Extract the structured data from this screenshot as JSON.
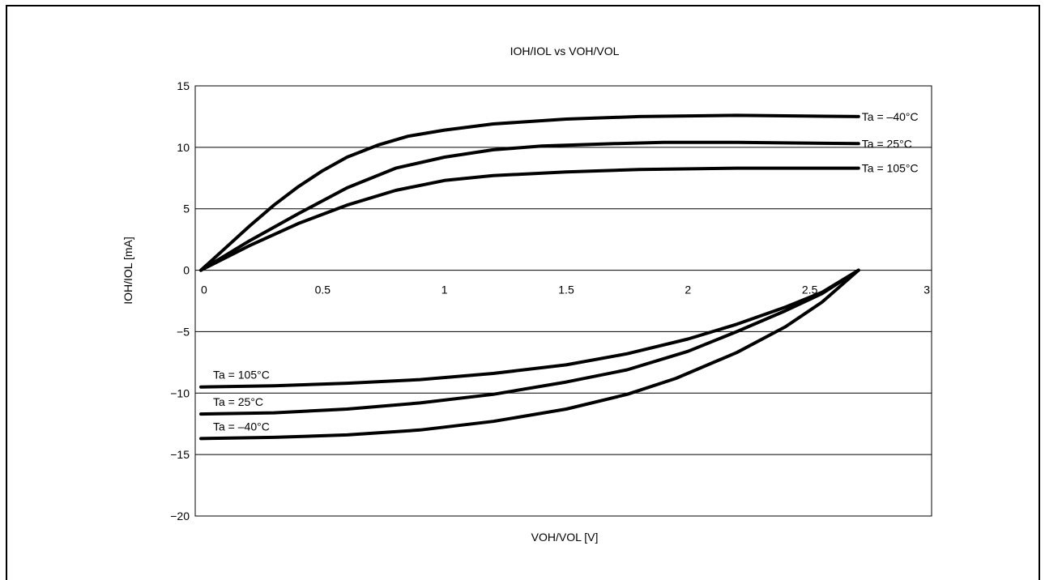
{
  "chart_data": {
    "type": "line",
    "title": "IOH/IOL vs VOH/VOL",
    "xlabel": "VOH/VOL [V]",
    "ylabel": "IOH/IOL [mA]",
    "xlim": [
      0,
      3
    ],
    "ylim": [
      -20,
      15
    ],
    "x_ticks": [
      0,
      0.5,
      1,
      1.5,
      2,
      2.5,
      3
    ],
    "x_tick_labels": [
      "0",
      "0.5",
      "1",
      "1.5",
      "2",
      "2.5",
      "3"
    ],
    "y_ticks": [
      15,
      10,
      5,
      0,
      -5,
      -10,
      -15,
      -20
    ],
    "y_tick_labels": [
      "15",
      "10",
      "5",
      "0",
      "−5",
      "−10",
      "−15",
      "−20"
    ],
    "grid": "horizontal",
    "color": "#000000",
    "series": [
      {
        "name": "Ta = –40°C",
        "label_side": "right",
        "x": [
          0,
          0.1,
          0.2,
          0.3,
          0.4,
          0.5,
          0.6,
          0.73,
          0.85,
          1.0,
          1.2,
          1.5,
          1.8,
          2.2,
          2.7
        ],
        "y": [
          0,
          1.8,
          3.6,
          5.3,
          6.8,
          8.1,
          9.2,
          10.2,
          10.9,
          11.4,
          11.9,
          12.3,
          12.5,
          12.6,
          12.5
        ]
      },
      {
        "name": "Ta = 25°C",
        "label_side": "right",
        "x": [
          0,
          0.2,
          0.4,
          0.6,
          0.8,
          1.0,
          1.2,
          1.4,
          1.7,
          1.9,
          2.2,
          2.7
        ],
        "y": [
          0,
          2.4,
          4.6,
          6.7,
          8.3,
          9.2,
          9.8,
          10.1,
          10.3,
          10.4,
          10.4,
          10.3
        ]
      },
      {
        "name": "Ta = 105°C",
        "label_side": "right",
        "x": [
          0,
          0.2,
          0.4,
          0.6,
          0.8,
          1.0,
          1.2,
          1.5,
          1.8,
          2.2,
          2.7
        ],
        "y": [
          0,
          2.0,
          3.8,
          5.3,
          6.5,
          7.3,
          7.7,
          8.0,
          8.2,
          8.3,
          8.3
        ]
      },
      {
        "name": "Ta = 105°C",
        "label_side": "left",
        "x": [
          0,
          0.3,
          0.6,
          0.9,
          1.2,
          1.5,
          1.75,
          2.0,
          2.2,
          2.4,
          2.55,
          2.7
        ],
        "y": [
          -9.5,
          -9.4,
          -9.2,
          -8.9,
          -8.4,
          -7.7,
          -6.8,
          -5.6,
          -4.4,
          -3.0,
          -1.8,
          0
        ]
      },
      {
        "name": "Ta = 25°C",
        "label_side": "left",
        "x": [
          0,
          0.3,
          0.6,
          0.9,
          1.2,
          1.5,
          1.75,
          2.0,
          2.2,
          2.4,
          2.55,
          2.7
        ],
        "y": [
          -11.7,
          -11.6,
          -11.3,
          -10.8,
          -10.1,
          -9.1,
          -8.1,
          -6.6,
          -5.0,
          -3.3,
          -1.9,
          0
        ]
      },
      {
        "name": "Ta = –40°C",
        "label_side": "left",
        "x": [
          0,
          0.3,
          0.6,
          0.9,
          1.2,
          1.5,
          1.75,
          1.95,
          2.2,
          2.4,
          2.55,
          2.7
        ],
        "y": [
          -13.7,
          -13.6,
          -13.4,
          -13.0,
          -12.3,
          -11.3,
          -10.1,
          -8.8,
          -6.7,
          -4.6,
          -2.6,
          0
        ]
      }
    ]
  }
}
